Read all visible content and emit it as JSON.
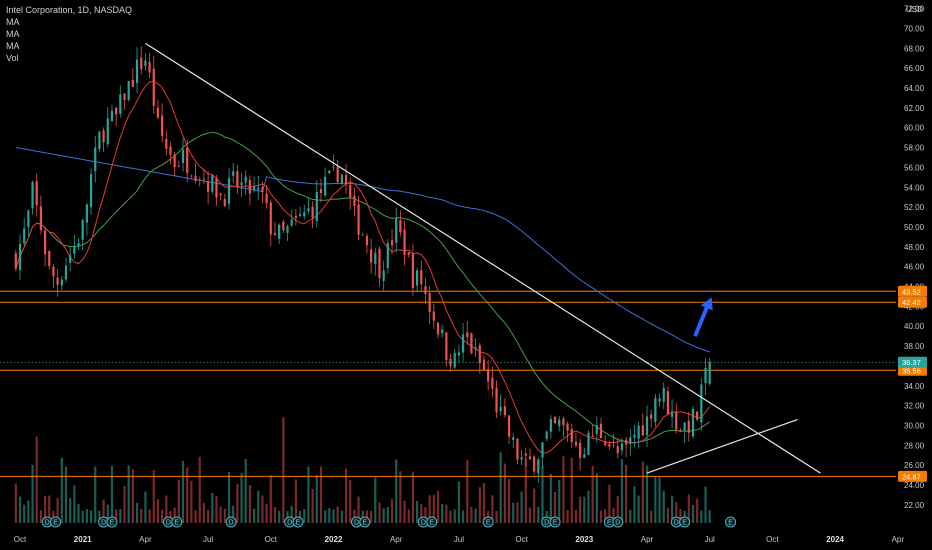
{
  "legend": {
    "title": "Intel Corporation, 1D, NASDAQ",
    "lines": [
      "MA",
      "MA",
      "MA",
      "Vol"
    ]
  },
  "currency": "USD",
  "chart_data": {
    "type": "candlestick",
    "y_axis": {
      "range": [
        21,
        72
      ],
      "ticks": [
        "22.00",
        "24.00",
        "26.00",
        "28.00",
        "30.00",
        "32.00",
        "34.00",
        "36.00",
        "38.00",
        "40.00",
        "42.00",
        "44.00",
        "46.00",
        "48.00",
        "50.00",
        "52.00",
        "54.00",
        "56.00",
        "58.00",
        "60.00",
        "62.00",
        "64.00",
        "66.00",
        "68.00",
        "70.00",
        "72.00"
      ],
      "tick_values": [
        22,
        24,
        26,
        28,
        30,
        32,
        34,
        36,
        38,
        40,
        42,
        44,
        46,
        48,
        50,
        52,
        54,
        56,
        58,
        60,
        62,
        64,
        66,
        68,
        70,
        72
      ]
    },
    "x_axis": {
      "labels": [
        {
          "text": "Oct",
          "year": false,
          "m": 0
        },
        {
          "text": "2021",
          "year": true,
          "m": 3
        },
        {
          "text": "Apr",
          "year": false,
          "m": 6
        },
        {
          "text": "Jul",
          "year": false,
          "m": 9
        },
        {
          "text": "Oct",
          "year": false,
          "m": 12
        },
        {
          "text": "2022",
          "year": true,
          "m": 15
        },
        {
          "text": "Apr",
          "year": false,
          "m": 18
        },
        {
          "text": "Jul",
          "year": false,
          "m": 21
        },
        {
          "text": "Oct",
          "year": false,
          "m": 24
        },
        {
          "text": "2023",
          "year": true,
          "m": 27
        },
        {
          "text": "Apr",
          "year": false,
          "m": 30
        },
        {
          "text": "Jul",
          "year": false,
          "m": 33
        },
        {
          "text": "Oct",
          "year": false,
          "m": 36
        },
        {
          "text": "2024",
          "year": true,
          "m": 39
        },
        {
          "text": "Apr",
          "year": false,
          "m": 42
        }
      ]
    },
    "price_path": [
      [
        -0.2,
        47
      ],
      [
        0.3,
        50
      ],
      [
        0.6,
        53.5
      ],
      [
        1.0,
        50
      ],
      [
        1.4,
        45.5
      ],
      [
        1.8,
        44.5
      ],
      [
        2.2,
        46.5
      ],
      [
        2.6,
        48
      ],
      [
        3.0,
        50
      ],
      [
        3.4,
        55
      ],
      [
        3.8,
        59
      ],
      [
        4.2,
        60.5
      ],
      [
        4.6,
        61
      ],
      [
        5.0,
        63.5
      ],
      [
        5.3,
        64.5
      ],
      [
        5.6,
        66
      ],
      [
        6.0,
        67
      ],
      [
        6.3,
        64
      ],
      [
        6.6,
        60
      ],
      [
        7.0,
        58
      ],
      [
        7.4,
        56.5
      ],
      [
        7.8,
        57
      ],
      [
        8.3,
        56
      ],
      [
        8.8,
        55
      ],
      [
        9.3,
        54
      ],
      [
        9.7,
        53
      ],
      [
        10.2,
        54.5
      ],
      [
        10.7,
        54
      ],
      [
        11.2,
        53.5
      ],
      [
        11.6,
        53
      ],
      [
        12.0,
        50
      ],
      [
        12.5,
        49
      ],
      [
        13.0,
        50
      ],
      [
        13.5,
        51
      ],
      [
        14.0,
        52
      ],
      [
        14.5,
        54
      ],
      [
        15.0,
        55
      ],
      [
        15.3,
        56
      ],
      [
        15.6,
        54
      ],
      [
        16.0,
        51
      ],
      [
        16.4,
        49.5
      ],
      [
        16.8,
        47.5
      ],
      [
        17.2,
        46
      ],
      [
        17.6,
        47.5
      ],
      [
        18.0,
        50
      ],
      [
        18.4,
        48
      ],
      [
        18.8,
        45
      ],
      [
        19.2,
        44.5
      ],
      [
        19.6,
        42
      ],
      [
        20.0,
        40
      ],
      [
        20.4,
        37.5
      ],
      [
        20.8,
        36.5
      ],
      [
        21.3,
        39
      ],
      [
        21.8,
        37
      ],
      [
        22.3,
        35
      ],
      [
        22.8,
        32
      ],
      [
        23.3,
        29.5
      ],
      [
        23.8,
        27
      ],
      [
        24.2,
        26
      ],
      [
        24.6,
        26.5
      ],
      [
        25.0,
        28
      ],
      [
        25.4,
        29.5
      ],
      [
        25.8,
        30
      ],
      [
        26.3,
        29
      ],
      [
        26.8,
        27.5
      ],
      [
        27.2,
        28.5
      ],
      [
        27.6,
        29.5
      ],
      [
        28.0,
        29
      ],
      [
        28.5,
        27
      ],
      [
        29.0,
        27.5
      ],
      [
        29.5,
        29.5
      ],
      [
        30.0,
        30.5
      ],
      [
        30.4,
        33
      ],
      [
        30.8,
        33
      ],
      [
        31.2,
        31
      ],
      [
        31.6,
        29.8
      ],
      [
        32.0,
        30.2
      ],
      [
        32.4,
        31
      ],
      [
        32.7,
        34
      ],
      [
        33.0,
        36.4
      ]
    ],
    "trendlines": [
      {
        "from": [
          6.0,
          68.5
        ],
        "to": [
          38.3,
          25.2
        ],
        "color": "#e8e8e8"
      },
      {
        "from": [
          30.0,
          25.2
        ],
        "to": [
          37.2,
          30.6
        ],
        "color": "#e8e8e8"
      }
    ],
    "horizontal_lines": [
      {
        "value": 43.52,
        "label": "43.52",
        "color": "#f57c00"
      },
      {
        "value": 42.42,
        "label": "42.42",
        "color": "#f57c00"
      },
      {
        "value": 35.56,
        "label": "35.56",
        "color": "#f57c00"
      },
      {
        "value": 24.87,
        "label": "24.87",
        "color": "#f57c00"
      }
    ],
    "last_price": {
      "value": 36.37,
      "label": "36.37",
      "color": "#26a69a"
    },
    "arrow": {
      "from": [
        32.3,
        39
      ],
      "to": [
        33.0,
        42.5
      ],
      "color": "#2962ff"
    },
    "event_markers": [
      {
        "m": 1.3,
        "text": "D"
      },
      {
        "m": 1.7,
        "text": "E"
      },
      {
        "m": 4.0,
        "text": "D"
      },
      {
        "m": 4.4,
        "text": "E"
      },
      {
        "m": 7.1,
        "text": "D"
      },
      {
        "m": 7.5,
        "text": "E"
      },
      {
        "m": 10.1,
        "text": "D"
      },
      {
        "m": 12.9,
        "text": "D"
      },
      {
        "m": 13.3,
        "text": "E"
      },
      {
        "m": 16.1,
        "text": "D"
      },
      {
        "m": 16.5,
        "text": "E"
      },
      {
        "m": 19.3,
        "text": "D"
      },
      {
        "m": 19.7,
        "text": "E"
      },
      {
        "m": 22.4,
        "text": "E"
      },
      {
        "m": 25.2,
        "text": "D"
      },
      {
        "m": 25.6,
        "text": "E"
      },
      {
        "m": 28.2,
        "text": "E"
      },
      {
        "m": 28.6,
        "text": "D"
      },
      {
        "m": 31.4,
        "text": "D"
      },
      {
        "m": 31.8,
        "text": "E"
      },
      {
        "m": 34.0,
        "text": "E"
      }
    ]
  },
  "colors": {
    "up": "#26a69a",
    "down": "#ef5350",
    "ma_fast": "#e53935",
    "ma_mid": "#43a047",
    "ma_slow": "#3f6fd8",
    "volume_up": "#1b5e57",
    "volume_down": "#7a2a2a"
  }
}
